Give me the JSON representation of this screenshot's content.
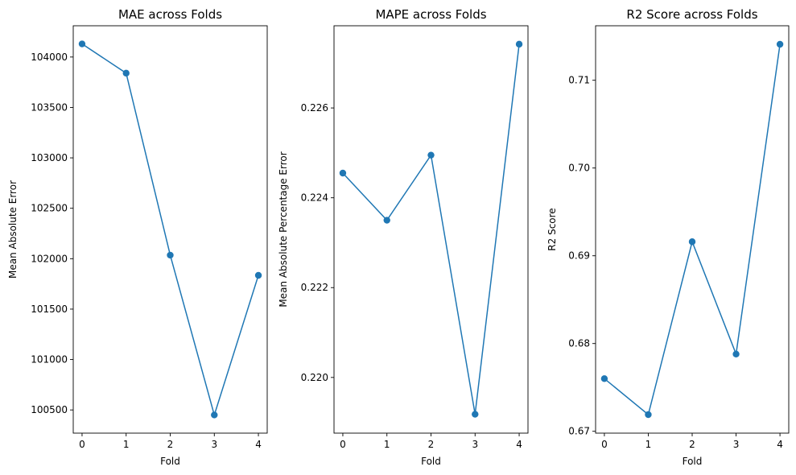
{
  "figure": {
    "line_color": "#1f77b4"
  },
  "chart_data": [
    {
      "type": "line",
      "title": "MAE across Folds",
      "xlabel": "Fold",
      "ylabel": "Mean Absolute Error",
      "x": [
        0,
        1,
        2,
        3,
        4
      ],
      "values": [
        104130,
        103840,
        102035,
        100450,
        101835
      ],
      "xlim": [
        -0.2,
        4.2
      ],
      "ylim": [
        100270,
        104310
      ],
      "xticks": [
        0,
        1,
        2,
        3,
        4
      ],
      "yticks": [
        100500,
        101000,
        101500,
        102000,
        102500,
        103000,
        103500,
        104000
      ],
      "ytick_labels": [
        "100500",
        "101000",
        "101500",
        "102000",
        "102500",
        "103000",
        "103500",
        "104000"
      ],
      "grid": false,
      "marker": "circle"
    },
    {
      "type": "line",
      "title": "MAPE across Folds",
      "xlabel": "Fold",
      "ylabel": "Mean Absolute Percentage Error",
      "x": [
        0,
        1,
        2,
        3,
        4
      ],
      "values": [
        0.22455,
        0.2235,
        0.22495,
        0.21918,
        0.22742
      ],
      "xlim": [
        -0.2,
        4.2
      ],
      "ylim": [
        0.21876,
        0.22783
      ],
      "xticks": [
        0,
        1,
        2,
        3,
        4
      ],
      "yticks": [
        0.22,
        0.222,
        0.224,
        0.226
      ],
      "ytick_labels": [
        "0.220",
        "0.222",
        "0.224",
        "0.226"
      ],
      "grid": false,
      "marker": "circle"
    },
    {
      "type": "line",
      "title": "R2 Score across Folds",
      "xlabel": "Fold",
      "ylabel": "R2 Score",
      "x": [
        0,
        1,
        2,
        3,
        4
      ],
      "values": [
        0.676,
        0.6719,
        0.6916,
        0.6788,
        0.7141
      ],
      "xlim": [
        -0.2,
        4.2
      ],
      "ylim": [
        0.66979,
        0.71621
      ],
      "xticks": [
        0,
        1,
        2,
        3,
        4
      ],
      "yticks": [
        0.67,
        0.68,
        0.69,
        0.7,
        0.71
      ],
      "ytick_labels": [
        "0.67",
        "0.68",
        "0.69",
        "0.70",
        "0.71"
      ],
      "grid": false,
      "marker": "circle"
    }
  ]
}
